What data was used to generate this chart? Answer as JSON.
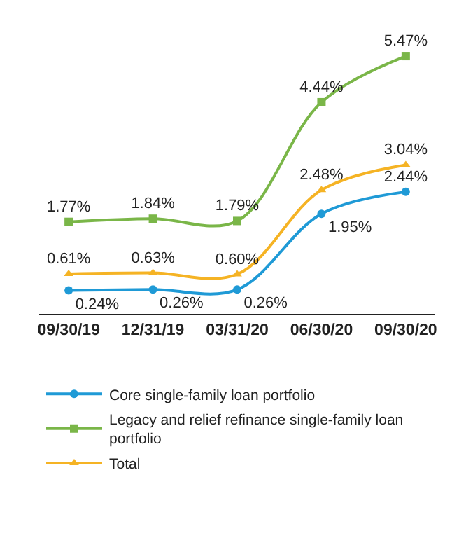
{
  "chart_data": {
    "type": "line",
    "categories": [
      "09/30/19",
      "12/31/19",
      "03/31/20",
      "06/30/20",
      "09/30/20"
    ],
    "series": [
      {
        "name": "Core single-family loan portfolio",
        "color": "#1f9ad6",
        "marker": "circle",
        "values": [
          0.24,
          0.26,
          0.26,
          1.95,
          2.44
        ],
        "value_labels": [
          "0.24%",
          "0.26%",
          "0.26%",
          "1.95%",
          "2.44%"
        ]
      },
      {
        "name": "Legacy and relief refinance single-family loan portfolio",
        "color": "#7ab648",
        "marker": "square",
        "values": [
          1.77,
          1.84,
          1.79,
          4.44,
          5.47
        ],
        "value_labels": [
          "1.77%",
          "1.84%",
          "1.79%",
          "4.44%",
          "5.47%"
        ]
      },
      {
        "name": "Total",
        "color": "#f5b324",
        "marker": "triangle",
        "values": [
          0.61,
          0.63,
          0.6,
          2.48,
          3.04
        ],
        "value_labels": [
          "0.61%",
          "0.63%",
          "0.60%",
          "2.48%",
          "3.04%"
        ]
      }
    ],
    "legend": "bottom",
    "tick_labels": "x"
  }
}
